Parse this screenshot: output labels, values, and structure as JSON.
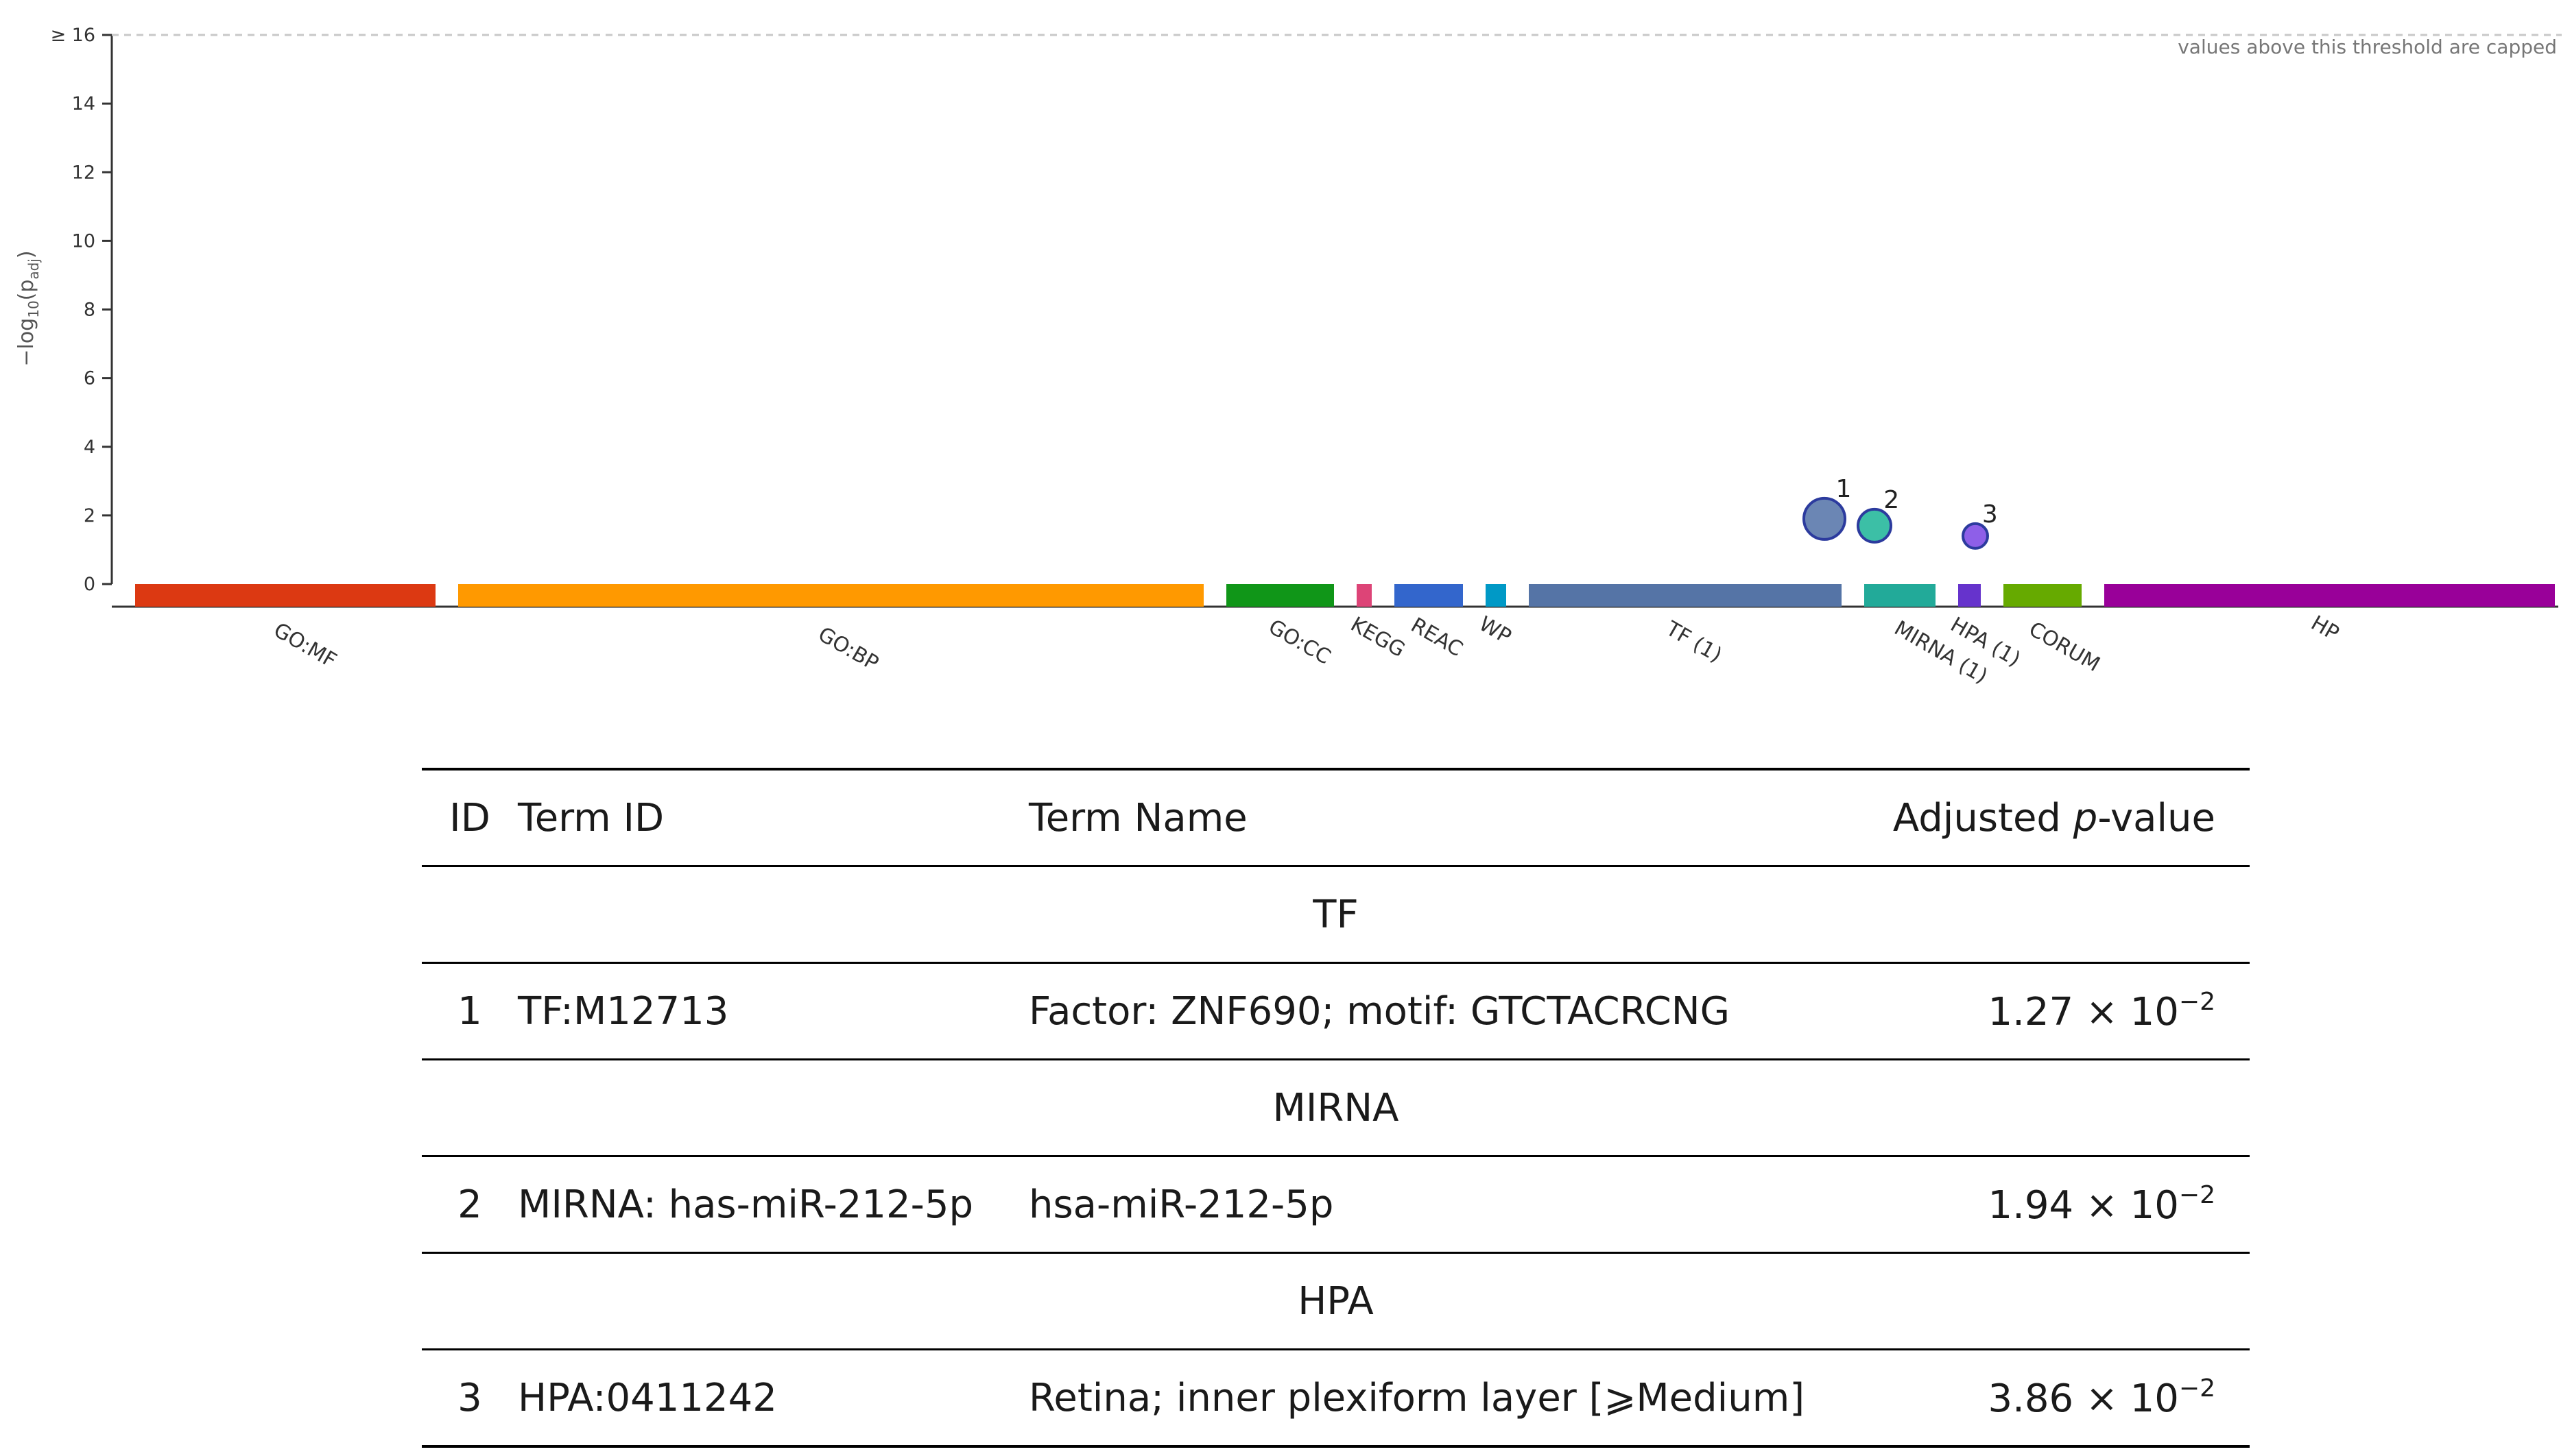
{
  "chart_data": {
    "type": "scatter",
    "title": "",
    "ylabel": "−log₁₀(p_adj)",
    "ylim": [
      0,
      16
    ],
    "yticks": [
      "0",
      "2",
      "4",
      "6",
      "8",
      "10",
      "12",
      "14",
      "≥ 16"
    ],
    "cap_note": "values above this threshold are capped",
    "categories": [
      {
        "name": "GO:MF",
        "label": "GO:MF",
        "color": "#dc3912"
      },
      {
        "name": "GO:BP",
        "label": "GO:BP",
        "color": "#ff9900"
      },
      {
        "name": "GO:CC",
        "label": "GO:CC",
        "color": "#109618"
      },
      {
        "name": "KEGG",
        "label": "KEGG",
        "color": "#dd4477"
      },
      {
        "name": "REAC",
        "label": "REAC",
        "color": "#3366cc"
      },
      {
        "name": "WP",
        "label": "WP",
        "color": "#0099c6"
      },
      {
        "name": "TF",
        "label": "TF (1)",
        "color": "#5574a6"
      },
      {
        "name": "MIRNA",
        "label": "MIRNA (1)",
        "color": "#22aa99"
      },
      {
        "name": "HPA",
        "label": "HPA (1)",
        "color": "#6633cc"
      },
      {
        "name": "CORUM",
        "label": "CORUM",
        "color": "#66aa00"
      },
      {
        "name": "HP",
        "label": "HP",
        "color": "#990099"
      }
    ],
    "points": [
      {
        "id": "1",
        "source": "TF",
        "value": 1.9,
        "size": 3,
        "color": "#6b86b4"
      },
      {
        "id": "2",
        "source": "MIRNA",
        "value": 1.7,
        "size": 2,
        "color": "#3cbfa6"
      },
      {
        "id": "3",
        "source": "HPA",
        "value": 1.4,
        "size": 1,
        "color": "#8e5fe8"
      }
    ]
  },
  "table": {
    "headers": {
      "id": "ID",
      "term_id": "Term ID",
      "term_name": "Term Name",
      "padj_prefix": "Adjusted ",
      "padj_italic": "p",
      "padj_suffix": "-value"
    },
    "groups": [
      {
        "name": "TF",
        "rows": [
          {
            "id": "1",
            "term_id": "TF:M12713",
            "term_name": "Factor: ZNF690; motif: GTCTACRCNG",
            "p_mantissa": "1.27 × 10",
            "p_exp": "−2"
          }
        ]
      },
      {
        "name": "MIRNA",
        "rows": [
          {
            "id": "2",
            "term_id": "MIRNA: has-miR-212-5p",
            "term_name": "hsa-miR-212-5p",
            "p_mantissa": "1.94 × 10",
            "p_exp": "−2"
          }
        ]
      },
      {
        "name": "HPA",
        "rows": [
          {
            "id": "3",
            "term_id": "HPA:0411242",
            "term_name": "Retina; inner plexiform layer [⩾Medium]",
            "p_mantissa": "3.86 × 10",
            "p_exp": "−2"
          }
        ]
      }
    ]
  }
}
